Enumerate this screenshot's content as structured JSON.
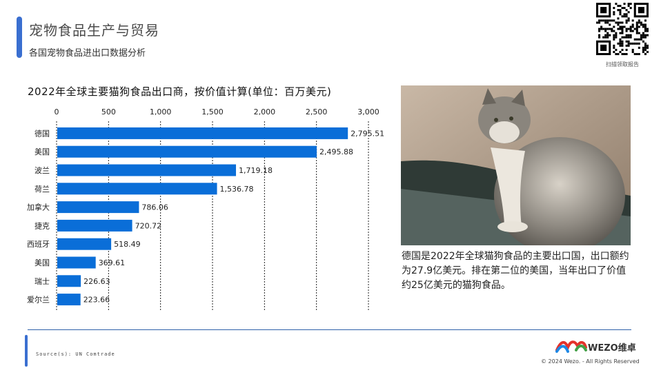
{
  "header": {
    "title": "宠物食品生产与贸易",
    "subtitle": "各国宠物食品进出口数据分析"
  },
  "qr": {
    "caption": "扫描领取报告"
  },
  "chart_data": {
    "type": "bar",
    "orientation": "horizontal",
    "title": "2022年全球主要猫狗食品出口商，按价值计算(单位：百万美元)",
    "categories": [
      "德国",
      "美国",
      "波兰",
      "荷兰",
      "加拿大",
      "捷克",
      "西班牙",
      "美国",
      "瑞士",
      "爱尔兰"
    ],
    "values": [
      2795.51,
      2495.88,
      1719.18,
      1536.78,
      786.06,
      720.72,
      518.49,
      369.61,
      226.63,
      223.66
    ],
    "value_labels": [
      "2,795.51",
      "2,495.88",
      "1,719.18",
      "1,536.78",
      "786.06",
      "720.72",
      "518.49",
      "369.61",
      "226.63",
      "223.66"
    ],
    "xticks": [
      0,
      500,
      1000,
      1500,
      2000,
      2500,
      3000
    ],
    "xtick_labels": [
      "0",
      "500",
      "1,000",
      "1,500",
      "2,000",
      "2,500",
      "3,000"
    ],
    "xlim": [
      0,
      3000
    ],
    "grid": "vertical-dashed",
    "axis_position": "top",
    "bar_color": "#0a6ed8"
  },
  "description": "德国是2022年全球猫狗食品的主要出口国，出口额约为27.9亿美元。排在第二位的美国，当年出口了价值约25亿美元的猫狗食品。",
  "footer": {
    "source": "Source(s): UN Comtrade",
    "logo_text": "WEZO维卓",
    "copyright": "© 2024 Wezo. - All Rights Reserved"
  }
}
